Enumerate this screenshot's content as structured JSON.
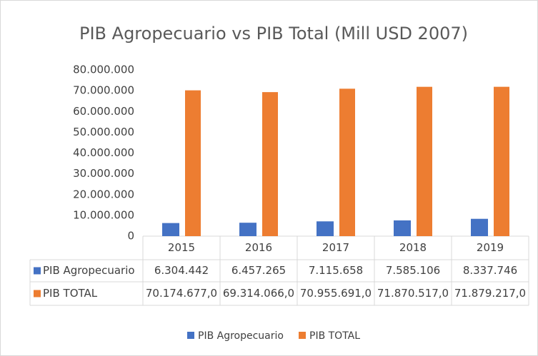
{
  "chart_data": {
    "type": "bar",
    "title": "PIB Agropecuario vs PIB Total (Mill USD 2007)",
    "categories": [
      "2015",
      "2016",
      "2017",
      "2018",
      "2019"
    ],
    "series": [
      {
        "name": "PIB Agropecuario",
        "color": "#4472c4",
        "values": [
          6304442,
          6457265,
          7115658,
          7585106,
          8337746
        ],
        "value_labels": [
          "6.304.442",
          "6.457.265",
          "7.115.658",
          "7.585.106",
          "8.337.746"
        ]
      },
      {
        "name": "PIB TOTAL",
        "color": "#ed7d31",
        "values": [
          70174677.0,
          69314066.0,
          70955691.0,
          71870517.0,
          71879217.0
        ],
        "value_labels": [
          "70.174.677,0",
          "69.314.066,0",
          "70.955.691,0",
          "71.870.517,0",
          "71.879.217,0"
        ]
      }
    ],
    "ylim": [
      0,
      80000000
    ],
    "yticks": [
      0,
      {
        "value": 10000000,
        "label": "10.000.000"
      },
      {
        "value": 20000000,
        "label": "20.000.000"
      },
      {
        "value": 30000000,
        "label": "30.000.000"
      },
      {
        "value": 40000000,
        "label": "40.000.000"
      },
      {
        "value": 50000000,
        "label": "50.000.000"
      },
      {
        "value": 60000000,
        "label": "60.000.000"
      },
      {
        "value": 70000000,
        "label": "70.000.000"
      },
      {
        "value": 80000000,
        "label": "80.000.000"
      }
    ],
    "grid": false,
    "legend": "bottom"
  }
}
